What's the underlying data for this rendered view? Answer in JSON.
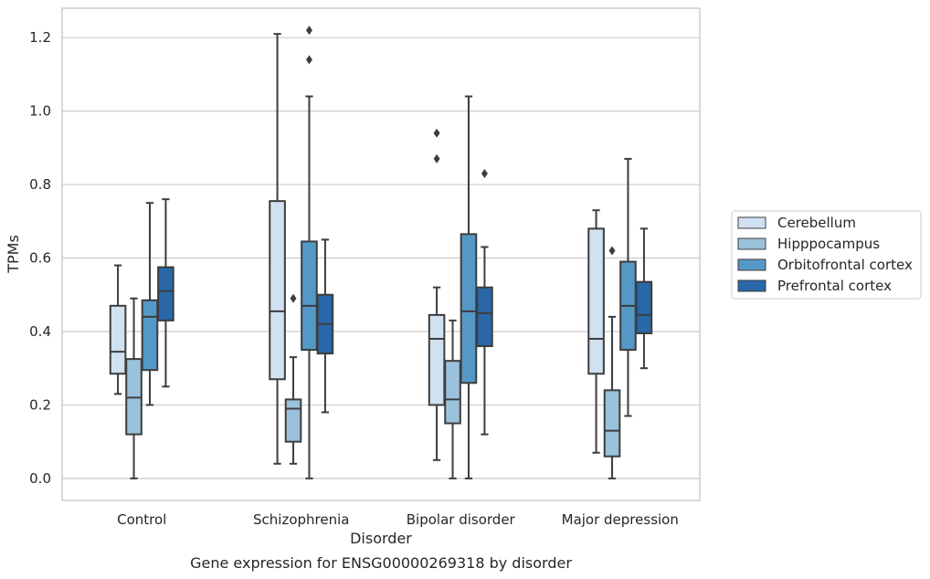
{
  "chart_data": {
    "type": "box",
    "title": "",
    "caption": "Gene expression for ENSG00000269318 by disorder",
    "xlabel": "Disorder",
    "ylabel": "TPMs",
    "ylim": [
      -0.06,
      1.28
    ],
    "yticks": [
      0.0,
      0.2,
      0.4,
      0.6,
      0.8,
      1.0,
      1.2
    ],
    "ytick_labels": [
      "0.0",
      "0.2",
      "0.4",
      "0.6",
      "0.8",
      "1.0",
      "1.2"
    ],
    "grid": "horizontal",
    "legend_position": "right",
    "categories": [
      "Control",
      "Schizophrenia",
      "Bipolar disorder",
      "Major depression"
    ],
    "series": [
      {
        "name": "Cerebellum",
        "color": "#d0e1f2",
        "boxes": [
          {
            "whislo": 0.23,
            "q1": 0.285,
            "med": 0.345,
            "q3": 0.47,
            "whishi": 0.58,
            "fliers": []
          },
          {
            "whislo": 0.04,
            "q1": 0.27,
            "med": 0.455,
            "q3": 0.755,
            "whishi": 1.21,
            "fliers": []
          },
          {
            "whislo": 0.05,
            "q1": 0.2,
            "med": 0.38,
            "q3": 0.445,
            "whishi": 0.52,
            "fliers": [
              0.87,
              0.94
            ]
          },
          {
            "whislo": 0.07,
            "q1": 0.285,
            "med": 0.38,
            "q3": 0.68,
            "whishi": 0.73,
            "fliers": []
          }
        ]
      },
      {
        "name": "Hipppocampus",
        "color": "#9ac2dc",
        "boxes": [
          {
            "whislo": 0.0,
            "q1": 0.12,
            "med": 0.22,
            "q3": 0.325,
            "whishi": 0.49,
            "fliers": []
          },
          {
            "whislo": 0.04,
            "q1": 0.1,
            "med": 0.19,
            "q3": 0.215,
            "whishi": 0.33,
            "fliers": [
              0.49
            ]
          },
          {
            "whislo": 0.0,
            "q1": 0.15,
            "med": 0.215,
            "q3": 0.32,
            "whishi": 0.43,
            "fliers": []
          },
          {
            "whislo": 0.0,
            "q1": 0.06,
            "med": 0.13,
            "q3": 0.24,
            "whishi": 0.44,
            "fliers": [
              0.62
            ]
          }
        ]
      },
      {
        "name": "Orbitofrontal cortex",
        "color": "#5498c6",
        "boxes": [
          {
            "whislo": 0.2,
            "q1": 0.295,
            "med": 0.44,
            "q3": 0.485,
            "whishi": 0.75,
            "fliers": []
          },
          {
            "whislo": 0.0,
            "q1": 0.35,
            "med": 0.47,
            "q3": 0.645,
            "whishi": 1.04,
            "fliers": [
              1.14,
              1.22
            ]
          },
          {
            "whislo": 0.0,
            "q1": 0.26,
            "med": 0.455,
            "q3": 0.665,
            "whishi": 1.04,
            "fliers": []
          },
          {
            "whislo": 0.17,
            "q1": 0.35,
            "med": 0.47,
            "q3": 0.59,
            "whishi": 0.87,
            "fliers": []
          }
        ]
      },
      {
        "name": "Prefrontal cortex",
        "color": "#2867a8",
        "boxes": [
          {
            "whislo": 0.25,
            "q1": 0.43,
            "med": 0.51,
            "q3": 0.575,
            "whishi": 0.76,
            "fliers": []
          },
          {
            "whislo": 0.18,
            "q1": 0.34,
            "med": 0.42,
            "q3": 0.5,
            "whishi": 0.65,
            "fliers": []
          },
          {
            "whislo": 0.12,
            "q1": 0.36,
            "med": 0.45,
            "q3": 0.52,
            "whishi": 0.63,
            "fliers": [
              0.83
            ]
          },
          {
            "whislo": 0.3,
            "q1": 0.395,
            "med": 0.445,
            "q3": 0.535,
            "whishi": 0.68,
            "fliers": []
          }
        ]
      }
    ]
  }
}
